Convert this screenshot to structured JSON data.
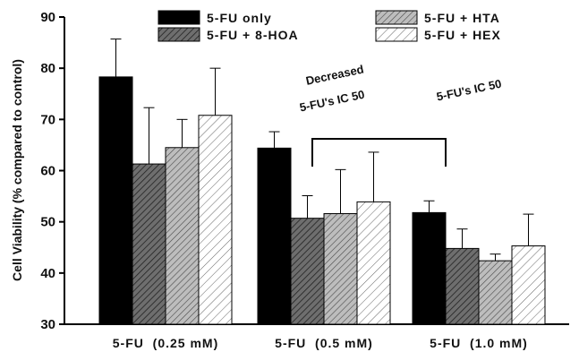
{
  "chart_data": {
    "type": "bar",
    "title": "",
    "xlabel": "",
    "ylabel": "Cell Viability (% compared to control)",
    "ylim": [
      30,
      90
    ],
    "yticks": [
      30,
      40,
      50,
      60,
      70,
      80,
      90
    ],
    "categories": [
      "5-FU  (0.25 mM)",
      "5-FU  (0.5 mM)",
      "5-FU  (1.0 mM)"
    ],
    "series": [
      {
        "name": "5-FU only",
        "pattern": "solid-black",
        "values": [
          78.3,
          64.4,
          51.8
        ],
        "errors": [
          7.4,
          3.2,
          2.3
        ]
      },
      {
        "name": "5-FU + 8-HOA",
        "pattern": "dark-hatch",
        "values": [
          61.3,
          50.7,
          44.8
        ],
        "errors": [
          11.0,
          4.4,
          3.8
        ]
      },
      {
        "name": "5-FU + HTA",
        "pattern": "gray-hatch",
        "values": [
          64.5,
          51.6,
          42.4
        ],
        "errors": [
          5.5,
          8.6,
          1.3
        ]
      },
      {
        "name": "5-FU + HEX",
        "pattern": "light-hatch",
        "values": [
          70.8,
          53.9,
          45.3
        ],
        "errors": [
          9.2,
          9.7,
          6.2
        ]
      }
    ],
    "annotations": {
      "decreased_line1": "Decreased",
      "decreased_line2": "5-FU's IC 50",
      "ic50": "5-FU's IC 50"
    },
    "colors": {
      "solid": "#000000",
      "dark_hatch_bg": "#6e6e6e",
      "gray_hatch_bg": "#bdbdbd",
      "light_hatch_bg": "#ffffff"
    },
    "grid": false,
    "legend_position": "top"
  }
}
